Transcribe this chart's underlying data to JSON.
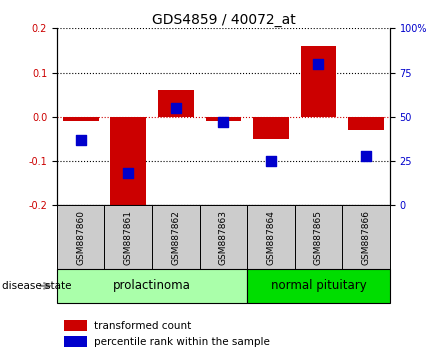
{
  "title": "GDS4859 / 40072_at",
  "samples": [
    "GSM887860",
    "GSM887861",
    "GSM887862",
    "GSM887863",
    "GSM887864",
    "GSM887865",
    "GSM887866"
  ],
  "red_values": [
    -0.01,
    -0.21,
    0.06,
    -0.01,
    -0.05,
    0.16,
    -0.03
  ],
  "blue_values": [
    37,
    18,
    55,
    47,
    25,
    80,
    28
  ],
  "ylim_left": [
    -0.2,
    0.2
  ],
  "ylim_right": [
    0,
    100
  ],
  "yticks_left": [
    -0.2,
    -0.1,
    0.0,
    0.1,
    0.2
  ],
  "yticks_right": [
    0,
    25,
    50,
    75,
    100
  ],
  "ytick_labels_right": [
    "0",
    "25",
    "50",
    "75",
    "100%"
  ],
  "red_color": "#cc0000",
  "blue_color": "#0000cc",
  "bar_width": 0.75,
  "blue_marker_size": 55,
  "groups": [
    {
      "label": "prolactinoma",
      "start": 0,
      "end": 3,
      "color": "#aaffaa"
    },
    {
      "label": "normal pituitary",
      "start": 4,
      "end": 6,
      "color": "#00dd00"
    }
  ],
  "group_label": "disease state",
  "legend_items": [
    {
      "label": "transformed count",
      "color": "#cc0000"
    },
    {
      "label": "percentile rank within the sample",
      "color": "#0000cc"
    }
  ],
  "title_fontsize": 10,
  "tick_label_fontsize": 7,
  "legend_fontsize": 7.5,
  "group_fontsize": 8.5,
  "sample_fontsize": 6.5,
  "sample_area_color": "#cccccc",
  "background_color": "#ffffff"
}
